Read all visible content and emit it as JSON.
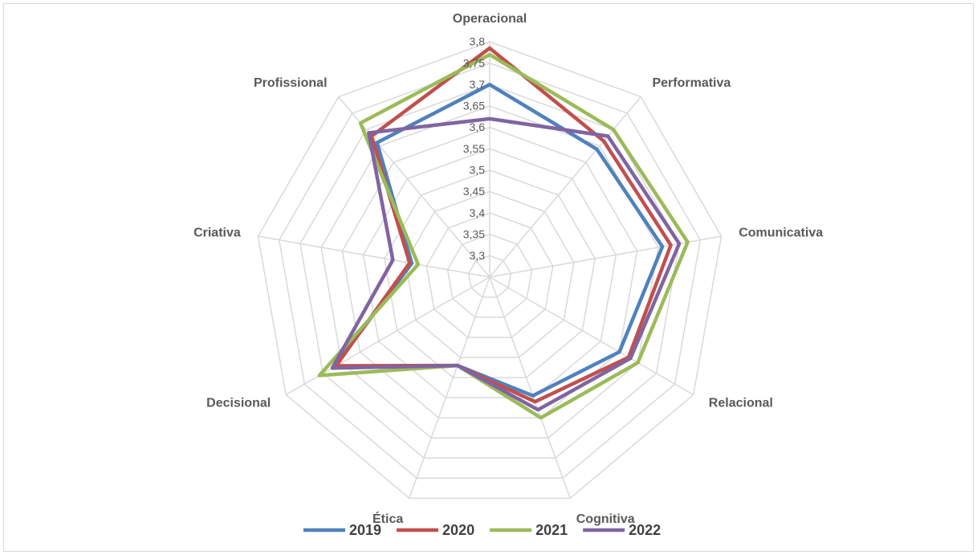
{
  "chart_data": {
    "type": "radar",
    "categories": [
      "Operacional",
      "Performativa",
      "Comunicativa",
      "Relacional",
      "Cognitiva",
      "Ética",
      "Decisional",
      "Criativa",
      "Profissional"
    ],
    "series": [
      {
        "name": "2019",
        "color": "#4f81bd",
        "values": [
          3.7,
          3.64,
          3.66,
          3.6,
          3.545,
          3.47,
          3.67,
          3.435,
          3.66
        ]
      },
      {
        "name": "2020",
        "color": "#c0504d",
        "values": [
          3.785,
          3.665,
          3.68,
          3.625,
          3.56,
          3.47,
          3.665,
          3.44,
          3.68
        ]
      },
      {
        "name": "2021",
        "color": "#9bbb59",
        "values": [
          3.77,
          3.7,
          3.72,
          3.65,
          3.6,
          3.47,
          3.71,
          3.42,
          3.72
        ]
      },
      {
        "name": "2022",
        "color": "#8064a2",
        "values": [
          3.62,
          3.68,
          3.7,
          3.63,
          3.58,
          3.47,
          3.675,
          3.48,
          3.69
        ]
      }
    ],
    "ylim": [
      3.25,
      3.8
    ],
    "yticks": [
      {
        "value": 3.3,
        "label": "3,3"
      },
      {
        "value": 3.35,
        "label": "3,35"
      },
      {
        "value": 3.4,
        "label": "3,4"
      },
      {
        "value": 3.45,
        "label": "3,45"
      },
      {
        "value": 3.5,
        "label": "3,5"
      },
      {
        "value": 3.55,
        "label": "3,55"
      },
      {
        "value": 3.6,
        "label": "3,6"
      },
      {
        "value": 3.65,
        "label": "3,65"
      },
      {
        "value": 3.7,
        "label": "3,7"
      },
      {
        "value": 3.75,
        "label": "3,75"
      },
      {
        "value": 3.8,
        "label": "3,8"
      }
    ],
    "legend": "bottom"
  }
}
